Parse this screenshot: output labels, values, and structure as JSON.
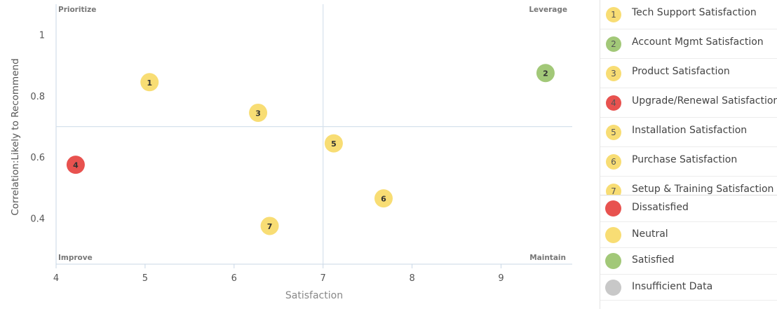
{
  "chart_data": {
    "type": "scatter",
    "title": "",
    "xlabel": "Satisfaction",
    "ylabel": "Correlation:Likely to Recommend",
    "xlim": [
      4,
      9.8
    ],
    "ylim": [
      0.25,
      1.1
    ],
    "x_ticks": [
      "4",
      "5",
      "6",
      "7",
      "8",
      "9"
    ],
    "y_ticks": [
      "0.4",
      "0.6",
      "0.8",
      "1"
    ],
    "divider": {
      "x": 7,
      "y": 0.7
    },
    "quadrants": {
      "top_left": "Prioritize",
      "top_right": "Leverage",
      "bottom_left": "Improve",
      "bottom_right": "Maintain"
    },
    "points": [
      {
        "id": "1",
        "name": "Tech Support Satisfaction",
        "x": 5.05,
        "y": 0.845,
        "status": "neutral"
      },
      {
        "id": "2",
        "name": "Account Mgmt Satisfaction",
        "x": 9.5,
        "y": 0.875,
        "status": "satisfied"
      },
      {
        "id": "3",
        "name": "Product Satisfaction",
        "x": 6.27,
        "y": 0.745,
        "status": "neutral"
      },
      {
        "id": "4",
        "name": "Upgrade/Renewal Satisfaction",
        "x": 4.22,
        "y": 0.575,
        "status": "dissatisfied"
      },
      {
        "id": "5",
        "name": "Installation Satisfaction",
        "x": 7.12,
        "y": 0.645,
        "status": "neutral"
      },
      {
        "id": "6",
        "name": "Purchase Satisfaction",
        "x": 7.68,
        "y": 0.465,
        "status": "neutral"
      },
      {
        "id": "7",
        "name": "Setup & Training Satisfaction",
        "x": 6.4,
        "y": 0.375,
        "status": "neutral"
      }
    ],
    "grid": false,
    "legend_position": "right"
  },
  "colors": {
    "dissatisfied": "#e8524f",
    "neutral": "#f8dd74",
    "satisfied": "#a2c878",
    "insufficient": "#c8c8c8",
    "axis": "#c9d7e6",
    "divider": "#d6e1ec"
  },
  "status_legend": [
    {
      "key": "dissatisfied",
      "label": "Dissatisfied"
    },
    {
      "key": "neutral",
      "label": "Neutral"
    },
    {
      "key": "satisfied",
      "label": "Satisfied"
    },
    {
      "key": "insufficient",
      "label": "Insufficient Data"
    }
  ]
}
